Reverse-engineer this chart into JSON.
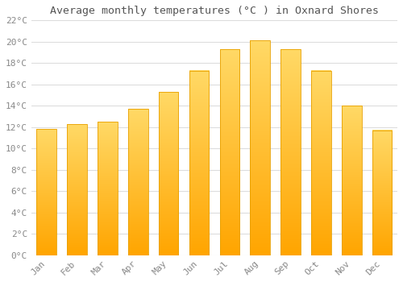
{
  "months": [
    "Jan",
    "Feb",
    "Mar",
    "Apr",
    "May",
    "Jun",
    "Jul",
    "Aug",
    "Sep",
    "Oct",
    "Nov",
    "Dec"
  ],
  "temperatures": [
    11.8,
    12.3,
    12.5,
    13.7,
    15.3,
    17.3,
    19.3,
    20.1,
    19.3,
    17.3,
    14.0,
    11.7
  ],
  "title": "Average monthly temperatures (°C ) in Oxnard Shores",
  "bar_color_top": "#FFD966",
  "bar_color_bottom": "#FFA500",
  "bar_edge_color": "#E8A000",
  "background_color": "#FFFFFF",
  "grid_color": "#DDDDDD",
  "ylim": [
    0,
    22
  ],
  "ytick_step": 2,
  "title_fontsize": 9.5,
  "tick_fontsize": 8,
  "font_family": "monospace",
  "tick_color": "#888888",
  "title_color": "#555555"
}
